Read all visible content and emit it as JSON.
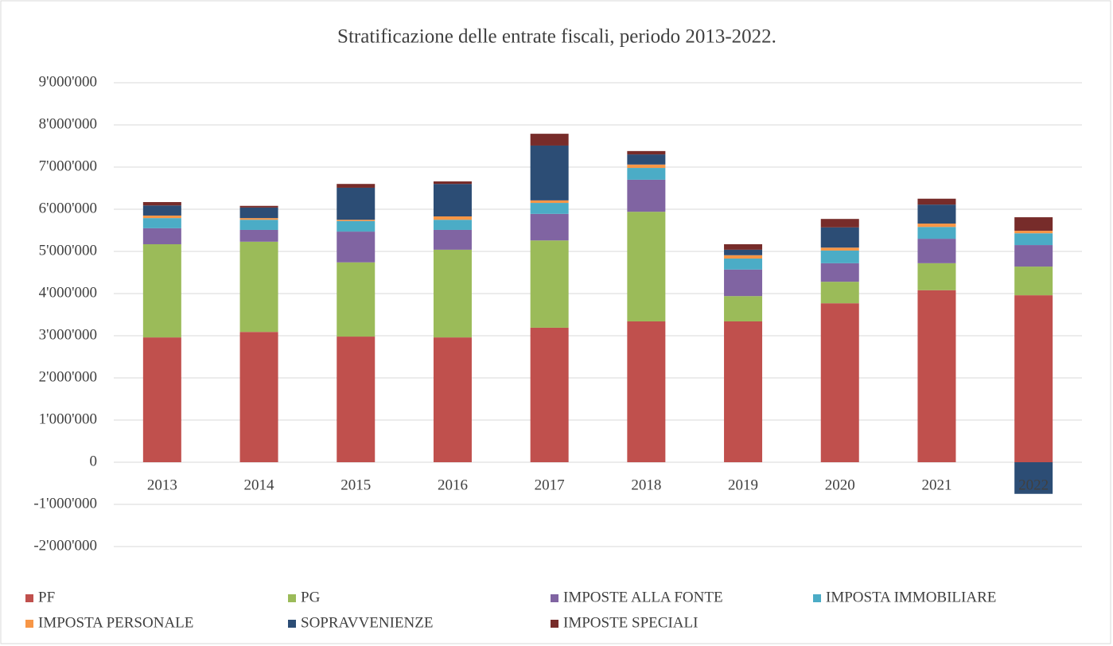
{
  "chart_data": {
    "type": "stacked_bar",
    "title": "Stratificazione delle entrate fiscali, periodo 2013-2022.",
    "categories": [
      "2013",
      "2014",
      "2015",
      "2016",
      "2017",
      "2018",
      "2019",
      "2020",
      "2021",
      "2022"
    ],
    "series": [
      {
        "name": "PF",
        "color": "#c0504d",
        "values": [
          2960000,
          3090000,
          2980000,
          2960000,
          3190000,
          3340000,
          3340000,
          3770000,
          4080000,
          3960000
        ]
      },
      {
        "name": "PG",
        "color": "#9bbb59",
        "values": [
          2210000,
          2140000,
          1760000,
          2080000,
          2070000,
          2600000,
          600000,
          510000,
          640000,
          680000
        ]
      },
      {
        "name": "IMPOSTE ALLA FONTE",
        "color": "#8064a2",
        "values": [
          380000,
          280000,
          730000,
          470000,
          630000,
          760000,
          630000,
          440000,
          580000,
          510000
        ]
      },
      {
        "name": "IMPOSTA IMMOBILIARE",
        "color": "#4bacc6",
        "values": [
          240000,
          240000,
          250000,
          240000,
          260000,
          280000,
          260000,
          300000,
          280000,
          280000
        ]
      },
      {
        "name": "IMPOSTA PERSONALE",
        "color": "#f79646",
        "values": [
          60000,
          40000,
          30000,
          80000,
          60000,
          80000,
          80000,
          70000,
          80000,
          60000
        ]
      },
      {
        "name": "SOPRAVVENIENZE",
        "color": "#2c4d75",
        "values": [
          240000,
          250000,
          760000,
          770000,
          1300000,
          240000,
          130000,
          480000,
          450000,
          -750000
        ]
      },
      {
        "name": "IMPOSTE SPECIALI",
        "color": "#772c2a",
        "values": [
          80000,
          40000,
          90000,
          60000,
          280000,
          80000,
          130000,
          200000,
          140000,
          320000
        ]
      }
    ],
    "ylim": [
      -2000000,
      9000000
    ],
    "yticks": [
      {
        "value": -2000000,
        "label": "-2'000'000"
      },
      {
        "value": -1000000,
        "label": "-1'000'000"
      },
      0,
      {
        "value": 1000000,
        "label": "1'000'000"
      },
      {
        "value": 2000000,
        "label": "2'000'000"
      },
      {
        "value": 3000000,
        "label": "3'000'000"
      },
      {
        "value": 4000000,
        "label": "4'000'000"
      },
      {
        "value": 5000000,
        "label": "5'000'000"
      },
      {
        "value": 6000000,
        "label": "6'000'000"
      },
      {
        "value": 7000000,
        "label": "7'000'000"
      },
      {
        "value": 8000000,
        "label": "8'000'000"
      },
      {
        "value": 9000000,
        "label": "9'000'000"
      }
    ],
    "grid": true,
    "legend": "bottom"
  }
}
